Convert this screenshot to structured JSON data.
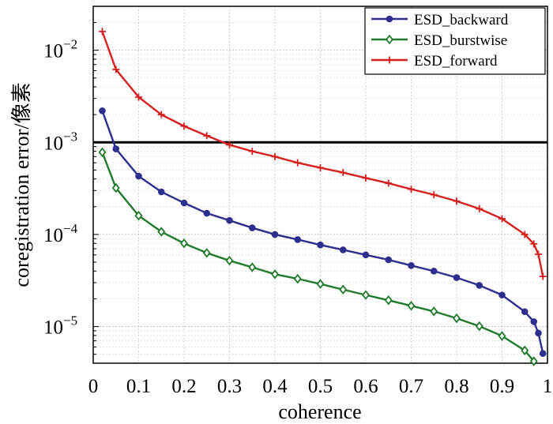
{
  "chart_data": {
    "type": "line",
    "xlabel": "coherence",
    "ylabel": "coregistration error/像素",
    "xlim": [
      0,
      1
    ],
    "ylim": [
      4e-06,
      0.03
    ],
    "yscale": "log",
    "grid": true,
    "legend_position": "top-right",
    "x_ticks": [
      "0",
      "0.1",
      "0.2",
      "0.3",
      "0.4",
      "0.5",
      "0.6",
      "0.7",
      "0.8",
      "0.9",
      "1"
    ],
    "y_ticks": [
      {
        "value": 0.01,
        "mantissa": "10",
        "exponent": "−2"
      },
      {
        "value": 0.001,
        "mantissa": "10",
        "exponent": "−3"
      },
      {
        "value": 0.0001,
        "mantissa": "10",
        "exponent": "−4"
      },
      {
        "value": 1e-05,
        "mantissa": "10",
        "exponent": "−5"
      }
    ],
    "reference_line": {
      "y": 0.001,
      "color": "#000000"
    },
    "series": [
      {
        "name": "ESD_backward",
        "color": "#2e2e8f",
        "marker": "circle",
        "x": [
          0.02,
          0.05,
          0.1,
          0.15,
          0.2,
          0.25,
          0.3,
          0.35,
          0.4,
          0.45,
          0.5,
          0.55,
          0.6,
          0.65,
          0.7,
          0.75,
          0.8,
          0.85,
          0.9,
          0.95,
          0.97,
          0.98,
          0.99
        ],
        "y": [
          0.0022,
          0.00085,
          0.00043,
          0.00029,
          0.00022,
          0.00017,
          0.000142,
          0.000118,
          0.0001,
          8.8e-05,
          7.7e-05,
          6.8e-05,
          6e-05,
          5.3e-05,
          4.6e-05,
          4e-05,
          3.4e-05,
          2.8e-05,
          2.2e-05,
          1.45e-05,
          1.13e-05,
          8.5e-06,
          5.1e-06
        ]
      },
      {
        "name": "ESD_burstwise",
        "color": "#1f7a2c",
        "marker": "diamond",
        "x": [
          0.02,
          0.05,
          0.1,
          0.15,
          0.2,
          0.25,
          0.3,
          0.35,
          0.4,
          0.45,
          0.5,
          0.55,
          0.6,
          0.65,
          0.7,
          0.75,
          0.8,
          0.85,
          0.9,
          0.95,
          0.97
        ],
        "y": [
          0.00078,
          0.00032,
          0.00016,
          0.000107,
          8e-05,
          6.3e-05,
          5.2e-05,
          4.4e-05,
          3.7e-05,
          3.3e-05,
          2.9e-05,
          2.52e-05,
          2.2e-05,
          1.93e-05,
          1.68e-05,
          1.46e-05,
          1.23e-05,
          1.01e-05,
          7.9e-06,
          5.5e-06,
          4.2e-06
        ]
      },
      {
        "name": "ESD_forward",
        "color": "#d62020",
        "marker": "plus",
        "x": [
          0.02,
          0.05,
          0.1,
          0.15,
          0.2,
          0.25,
          0.3,
          0.35,
          0.4,
          0.45,
          0.5,
          0.55,
          0.6,
          0.65,
          0.7,
          0.75,
          0.8,
          0.85,
          0.9,
          0.95,
          0.97,
          0.98,
          0.99
        ],
        "y": [
          0.016,
          0.0062,
          0.0031,
          0.002,
          0.0015,
          0.00118,
          0.00094,
          0.0008,
          0.0007,
          0.0006,
          0.00053,
          0.00047,
          0.00041,
          0.00036,
          0.00031,
          0.00027,
          0.00023,
          0.00019,
          0.000148,
          0.0001,
          7.9e-05,
          6.1e-05,
          3.5e-05
        ]
      }
    ]
  }
}
